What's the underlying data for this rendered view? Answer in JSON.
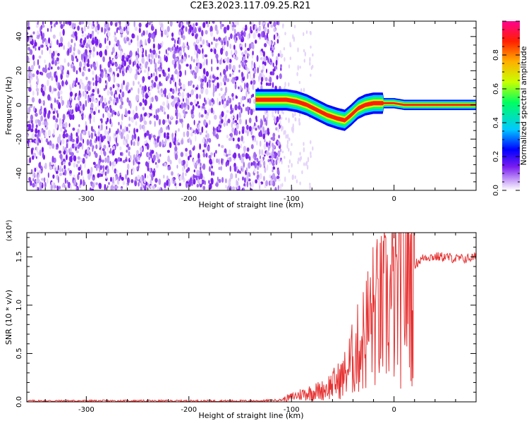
{
  "title": "C2E3.2023.117.09.25.R21",
  "chart_data": [
    {
      "type": "heatmap",
      "xlabel": "Height of straight line (km)",
      "ylabel": "Frequency (Hz)",
      "xlim": [
        -358,
        80
      ],
      "ylim": [
        -50,
        49
      ],
      "xticks": [
        -300,
        -200,
        -100,
        0
      ],
      "yticks": [
        -40,
        -20,
        0,
        20,
        40
      ],
      "noise_region_x": [
        -358,
        -110
      ],
      "signal_ridge": {
        "x": [
          -135,
          -125,
          -115,
          -105,
          -95,
          -85,
          -75,
          -65,
          -55,
          -48,
          -42,
          -35,
          -28,
          -20,
          -12,
          -5,
          0,
          10,
          30,
          50,
          80
        ],
        "y": [
          3,
          3,
          3,
          3,
          2,
          0,
          -3,
          -6,
          -8,
          -9,
          -6,
          -2,
          0,
          1,
          1,
          1,
          1,
          0,
          0,
          0,
          0
        ]
      },
      "colorbar": {
        "label": "Normalized spectral amplitude",
        "range": [
          0,
          1
        ],
        "ticks": [
          0.0,
          0.2,
          0.4,
          0.6,
          0.8
        ],
        "colors": [
          "#ffffff",
          "#c6a0f7",
          "#7a1cf0",
          "#0000ff",
          "#00c8ff",
          "#00ff60",
          "#c8ff00",
          "#ffb000",
          "#ff2000",
          "#ff0090"
        ]
      }
    },
    {
      "type": "line",
      "xlabel": "Height of straight line (km)",
      "ylabel": "SNR (10 * v/v)",
      "scale_label": "(x10⁴)",
      "xlim": [
        -358,
        80
      ],
      "ylim": [
        0,
        1.75
      ],
      "xticks": [
        -300,
        -200,
        -100,
        0
      ],
      "yticks": [
        0.0,
        0.5,
        1.0,
        1.5
      ],
      "series": [
        {
          "color": "#e63232",
          "x": [
            -358,
            -300,
            -200,
            -130,
            -110,
            -100,
            -90,
            -80,
            -70,
            -60,
            -50,
            -45,
            -40,
            -35,
            -30,
            -25,
            -20,
            -15,
            -10,
            -5,
            0,
            5,
            10,
            20,
            30,
            40,
            50,
            60,
            70,
            80
          ],
          "y": [
            0.01,
            0.01,
            0.01,
            0.01,
            0.02,
            0.05,
            0.08,
            0.1,
            0.12,
            0.18,
            0.25,
            0.35,
            0.45,
            0.55,
            0.65,
            0.8,
            0.9,
            0.92,
            0.95,
            1.0,
            1.05,
            1.12,
            1.25,
            1.42,
            1.5,
            1.5,
            1.5,
            1.48,
            1.48,
            1.5
          ]
        }
      ]
    }
  ]
}
